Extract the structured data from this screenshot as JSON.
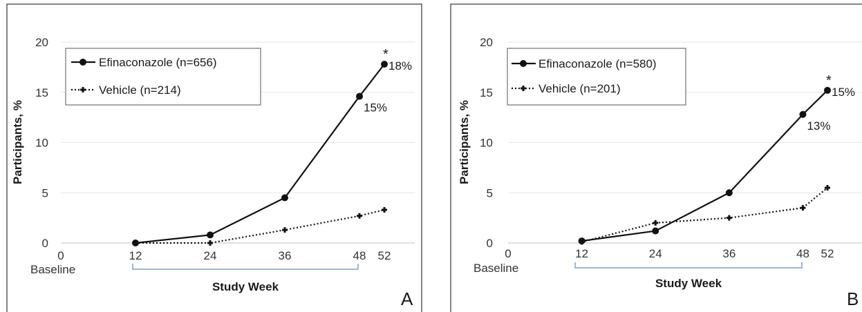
{
  "chart_data": [
    {
      "type": "line",
      "panel_letter": "A",
      "xlabel": "Study Week",
      "ylabel": "Participants, %",
      "ylim": [
        0,
        20
      ],
      "y_ticks": [
        0,
        5,
        10,
        15,
        20
      ],
      "x_ticks": [
        0,
        12,
        24,
        36,
        48,
        52
      ],
      "x_tick_labels": [
        "0",
        "12",
        "24",
        "36",
        "48",
        "52"
      ],
      "baseline_label": "Baseline",
      "grid": "horizontal",
      "legend_position": "top-left",
      "x": [
        12,
        24,
        36,
        48,
        52
      ],
      "series": [
        {
          "name": "Efinaconazole (n=656)",
          "values": [
            0,
            0.8,
            4.5,
            14.6,
            17.8
          ],
          "style": "solid",
          "marker": "circle",
          "color": "#111111"
        },
        {
          "name": "Vehicle (n=214)",
          "values": [
            0,
            0,
            1.3,
            2.7,
            3.3
          ],
          "style": "dotted",
          "marker": "plus",
          "color": "#111111"
        }
      ],
      "annotations": [
        {
          "text": "18%",
          "x": 52,
          "y": 17.8
        },
        {
          "text": "15%",
          "x": 48,
          "y": 14.6
        },
        {
          "text": "*",
          "x": 52,
          "y": 17.8
        }
      ]
    },
    {
      "type": "line",
      "panel_letter": "B",
      "xlabel": "Study Week",
      "ylabel": "Participants, %",
      "ylim": [
        0,
        20
      ],
      "y_ticks": [
        0,
        5,
        10,
        15,
        20
      ],
      "x_ticks": [
        0,
        12,
        24,
        36,
        48,
        52
      ],
      "x_tick_labels": [
        "0",
        "12",
        "24",
        "36",
        "48",
        "52"
      ],
      "baseline_label": "Baseline",
      "grid": "horizontal",
      "legend_position": "top-left",
      "x": [
        12,
        24,
        36,
        48,
        52
      ],
      "series": [
        {
          "name": "Efinaconazole (n=580)",
          "values": [
            0.2,
            1.2,
            5,
            12.8,
            15.2
          ],
          "style": "solid",
          "marker": "circle",
          "color": "#111111"
        },
        {
          "name": "Vehicle (n=201)",
          "values": [
            0.1,
            2,
            2.5,
            3.5,
            5.5
          ],
          "style": "dotted",
          "marker": "plus",
          "color": "#111111"
        }
      ],
      "annotations": [
        {
          "text": "15%",
          "x": 52,
          "y": 15.2
        },
        {
          "text": "13%",
          "x": 48,
          "y": 12.8
        },
        {
          "text": "*",
          "x": 52,
          "y": 15.2
        }
      ]
    }
  ],
  "colors": {
    "bracket": "#7a9fc7",
    "grid": "#e6e6e6",
    "frame": "#333333"
  }
}
